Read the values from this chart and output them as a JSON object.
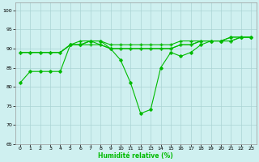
{
  "xlabel": "Humidité relative (%)",
  "background_color": "#cff0f0",
  "grid_color": "#aad4d4",
  "line_color": "#00bb00",
  "xlim": [
    -0.5,
    23.5
  ],
  "ylim": [
    65,
    102
  ],
  "yticks": [
    65,
    70,
    75,
    80,
    85,
    90,
    95,
    100
  ],
  "xticks": [
    0,
    1,
    2,
    3,
    4,
    5,
    6,
    7,
    8,
    9,
    10,
    11,
    12,
    13,
    14,
    15,
    16,
    17,
    18,
    19,
    20,
    21,
    22,
    23
  ],
  "series": [
    [
      81,
      84,
      84,
      84,
      84,
      91,
      91,
      92,
      92,
      90,
      87,
      81,
      73,
      74,
      85,
      89,
      88,
      89,
      91,
      92,
      92,
      93,
      93,
      93
    ],
    [
      89,
      89,
      89,
      89,
      89,
      91,
      91,
      92,
      91,
      90,
      90,
      90,
      90,
      90,
      90,
      90,
      91,
      91,
      92,
      92,
      92,
      92,
      93,
      93
    ],
    [
      89,
      89,
      89,
      89,
      89,
      91,
      92,
      92,
      92,
      91,
      91,
      91,
      91,
      91,
      91,
      91,
      92,
      92,
      92,
      92,
      92,
      93,
      93,
      93
    ],
    [
      89,
      89,
      89,
      89,
      89,
      91,
      91,
      91,
      91,
      90,
      90,
      90,
      90,
      90,
      90,
      90,
      91,
      91,
      92,
      92,
      92,
      92,
      93,
      93
    ]
  ],
  "marker_styles": [
    "D",
    "+",
    "+",
    "+"
  ],
  "marker_sizes": [
    1.8,
    3.0,
    3.0,
    3.0
  ],
  "linewidths": [
    0.8,
    0.8,
    0.8,
    0.8
  ]
}
